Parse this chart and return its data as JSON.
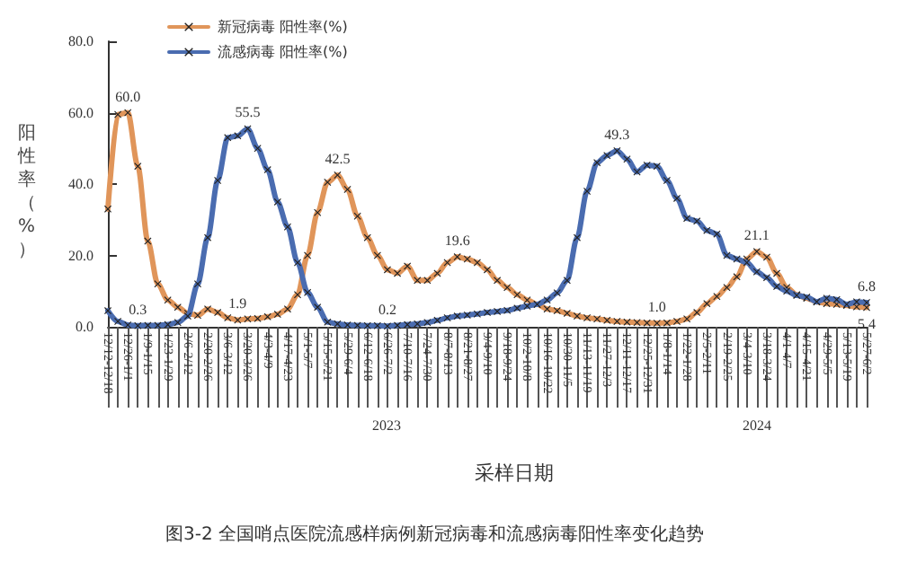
{
  "chart_data": {
    "type": "line",
    "xlabel": "采样日期",
    "ylabel": "阳性率（%）",
    "categories": [
      "12/12-12/18",
      null,
      "12/26-1/1",
      null,
      "1/9-1/15",
      null,
      "1/23-1/29",
      null,
      "2/6-2/12",
      null,
      "2/20-2/26",
      null,
      "3/6-3/12",
      null,
      "3/20-3/26",
      null,
      "4/3-4/9",
      null,
      "4/17-4/23",
      null,
      "5/1-5/7",
      null,
      "5/15-5/21",
      null,
      "5/29-6/4",
      null,
      "6/12-6/18",
      null,
      "6/26-7/2",
      null,
      "7/10-7/16",
      null,
      "7/24-7/30",
      null,
      "8/7-8/13",
      null,
      "8/21-8/27",
      null,
      "9/4-9/10",
      null,
      "9/18-9/24",
      null,
      "10/2-10/8",
      null,
      "10/16-10/22",
      null,
      "10/30-11/5",
      null,
      "11/13-11/19",
      null,
      "11/27-12/3",
      null,
      "12/11-12/17",
      null,
      "12/25-12/31",
      null,
      "1/8-1/14",
      null,
      "1/22-1/28",
      null,
      "2/5-2/11",
      null,
      "2/19-2/25",
      null,
      "3/4-3/10",
      null,
      "3/18-3/24",
      null,
      "4/1-4/7",
      null,
      "4/15-4/21",
      null,
      "4/29-5/5",
      null,
      "5/13-5/19",
      null,
      "5/27-6/2"
    ],
    "series": [
      {
        "name": "新冠病毒 阳性率(%)",
        "color": "#e0955a",
        "values": [
          33,
          59.5,
          60.0,
          45,
          24,
          12,
          7.5,
          5.5,
          3.8,
          3.2,
          5,
          4,
          2.5,
          1.9,
          2.2,
          2.3,
          2.8,
          3.5,
          5,
          9,
          20,
          32,
          40.5,
          42.5,
          38.5,
          31,
          25,
          20,
          16,
          15,
          17,
          13,
          13,
          15,
          18,
          19.6,
          19,
          18,
          16,
          13,
          11,
          9,
          7.5,
          6.3,
          5,
          4.5,
          3.8,
          3,
          2.5,
          2.2,
          1.8,
          1.5,
          1.3,
          1.2,
          1.1,
          1.0,
          1.1,
          1.5,
          2.2,
          4,
          6.5,
          8.5,
          11,
          14,
          19,
          21.1,
          19.5,
          15,
          11,
          9,
          8,
          7,
          6.5,
          6.3,
          6,
          5.6,
          5.4
        ],
        "value_labels": [
          null,
          null,
          "60.0",
          null,
          null,
          null,
          null,
          null,
          null,
          null,
          null,
          null,
          null,
          "1.9",
          null,
          null,
          null,
          null,
          null,
          null,
          null,
          null,
          null,
          "42.5",
          null,
          null,
          null,
          null,
          null,
          null,
          null,
          null,
          null,
          null,
          null,
          "19.6",
          null,
          null,
          null,
          null,
          null,
          null,
          null,
          null,
          null,
          null,
          null,
          null,
          null,
          null,
          null,
          null,
          null,
          null,
          null,
          "1.0",
          null,
          null,
          null,
          null,
          null,
          null,
          null,
          null,
          null,
          "21.1",
          null,
          null,
          null,
          null,
          null,
          null,
          null,
          null,
          null,
          null,
          "5.4"
        ]
      },
      {
        "name": "流感病毒 阳性率(%)",
        "color": "#4a6cb0",
        "values": [
          4.5,
          1.5,
          0.5,
          0.3,
          0.4,
          0.4,
          0.6,
          1.2,
          3,
          12,
          25,
          41,
          53,
          53.5,
          55.5,
          50,
          44,
          35,
          28,
          18,
          9.6,
          5.5,
          1.3,
          0.8,
          0.5,
          0.4,
          0.3,
          0.3,
          0.2,
          0.4,
          0.6,
          0.8,
          1.2,
          1.8,
          2.5,
          3,
          3.3,
          3.6,
          4,
          4.3,
          4.6,
          5.2,
          5.8,
          6.3,
          7.5,
          9.5,
          13,
          25,
          38,
          46,
          48,
          49.3,
          47,
          43.4,
          45.3,
          45,
          41,
          36,
          30.4,
          29.6,
          27,
          26,
          20,
          19,
          18,
          15.4,
          13.8,
          11.3,
          10,
          8.8,
          8.3,
          7,
          8,
          7.6,
          6.3,
          7,
          6.8
        ],
        "value_labels": [
          null,
          null,
          null,
          "0.3",
          null,
          null,
          null,
          null,
          null,
          null,
          null,
          null,
          null,
          null,
          "55.5",
          null,
          null,
          null,
          null,
          null,
          null,
          null,
          null,
          null,
          null,
          null,
          null,
          null,
          "0.2",
          null,
          null,
          null,
          null,
          null,
          null,
          null,
          null,
          null,
          null,
          null,
          null,
          null,
          null,
          null,
          null,
          null,
          null,
          null,
          null,
          null,
          null,
          "49.3",
          null,
          null,
          null,
          null,
          null,
          null,
          null,
          null,
          null,
          null,
          null,
          null,
          null,
          null,
          null,
          null,
          null,
          null,
          null,
          null,
          null,
          null,
          null,
          null,
          "6.8"
        ]
      }
    ],
    "ylim": [
      0,
      80
    ],
    "yticks": [
      {
        "value": 0,
        "label": "0.0"
      },
      {
        "value": 20,
        "label": "20.0"
      },
      {
        "value": 40,
        "label": "40.0"
      },
      {
        "value": 60,
        "label": "60.0"
      },
      {
        "value": 80,
        "label": "80.0"
      }
    ],
    "grid": false,
    "legend": "top left",
    "marker": "cross",
    "line_style": "solid",
    "annotations": [
      "2023",
      "2024",
      "图3-2 全国哨点医院流感样病例新冠病毒和流感病毒阳性率变化趋势"
    ]
  }
}
